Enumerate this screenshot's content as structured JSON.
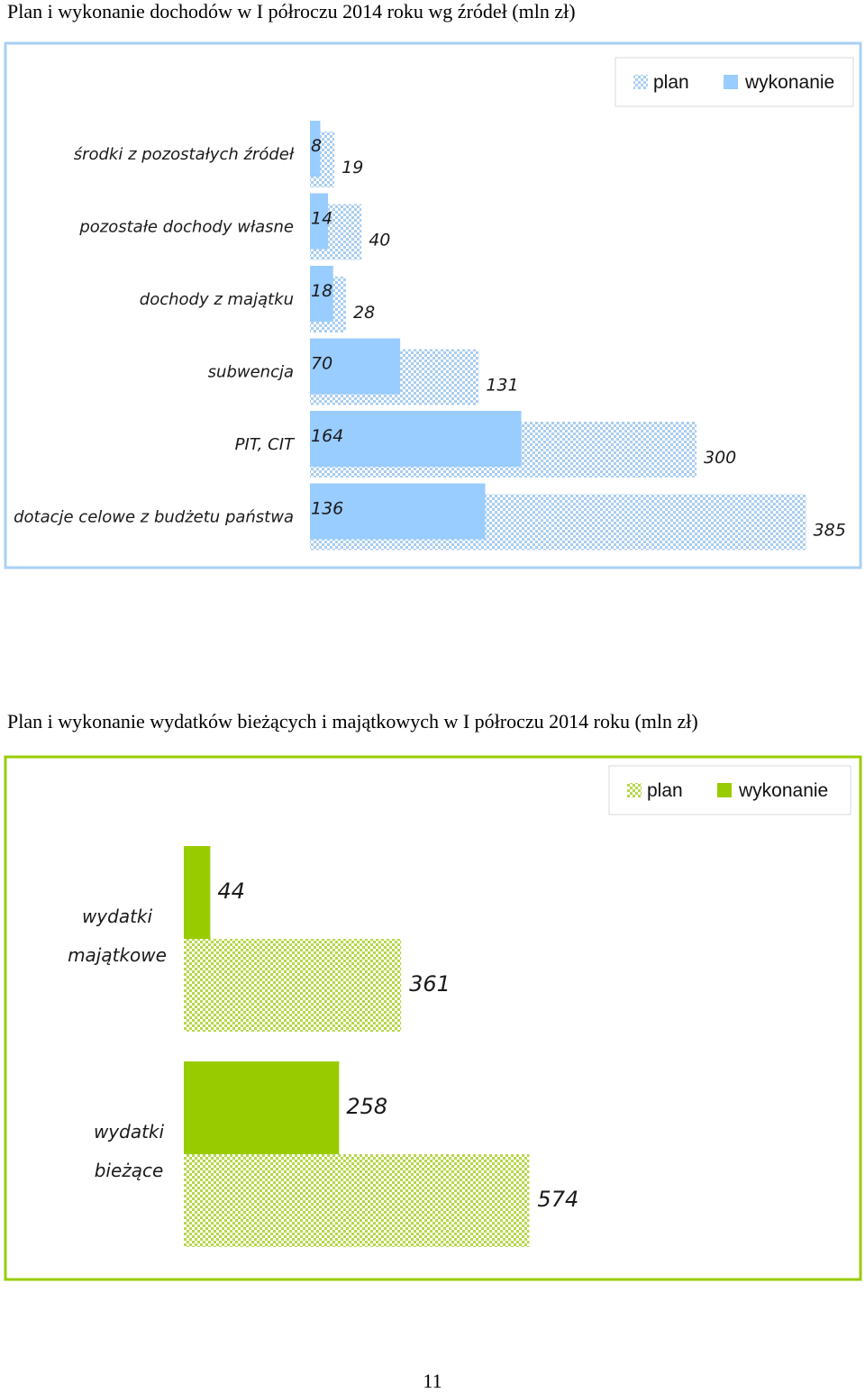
{
  "page_number": "11",
  "colors": {
    "blue_accent": "#99ccff",
    "blue_plan_check": "#a9cdf0",
    "blue_frame": "#a9d0f5",
    "green_accent": "#99cc00",
    "green_plan_check": "#b5d84a",
    "green_frame": "#99cc00"
  },
  "chart_data": [
    {
      "type": "bar",
      "orientation": "horizontal",
      "title": "Plan i wykonanie dochodów w I półroczu 2014 roku wg źródeł (mln zł)",
      "categories": [
        "środki z pozostałych źródeł",
        "pozostałe dochody własne",
        "dochody z majątku",
        "subwencja",
        "PIT, CIT",
        "dotacje celowe z budżetu państwa"
      ],
      "series": [
        {
          "name": "wykonanie",
          "values": [
            8,
            14,
            18,
            70,
            164,
            136
          ],
          "pattern": "solid"
        },
        {
          "name": "plan",
          "values": [
            19,
            40,
            28,
            131,
            300,
            385
          ],
          "pattern": "checkered"
        }
      ],
      "legend": [
        "plan",
        "wykonanie"
      ],
      "legend_position": "top-right",
      "grid": false
    },
    {
      "type": "bar",
      "orientation": "horizontal",
      "title": "Plan i wykonanie wydatków bieżących i majątkowych w I półroczu 2014 roku (mln zł)",
      "categories": [
        [
          "wydatki",
          "majątkowe"
        ],
        [
          "wydatki",
          "bieżące"
        ]
      ],
      "series": [
        {
          "name": "wykonanie",
          "values": [
            44,
            258
          ],
          "pattern": "solid"
        },
        {
          "name": "plan",
          "values": [
            361,
            574
          ],
          "pattern": "checkered"
        }
      ],
      "legend": [
        "plan",
        "wykonanie"
      ],
      "legend_position": "top-right",
      "grid": false
    }
  ]
}
